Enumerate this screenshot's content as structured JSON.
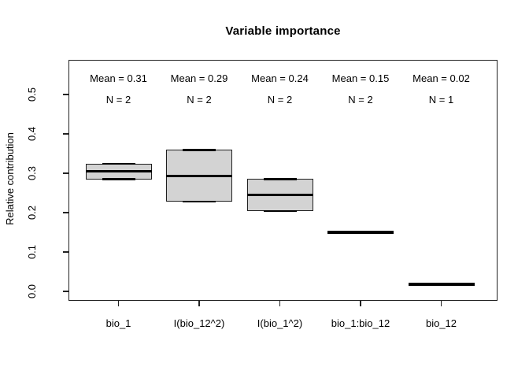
{
  "chart_data": {
    "type": "boxplot",
    "title": "Variable importance",
    "ylabel": "Relative contribution",
    "xlabel": "",
    "ylim": [
      -0.024,
      0.588
    ],
    "grid": false,
    "legend": "none",
    "colors": {
      "box_fill": "#d3d3d3",
      "box_border": "#1f1f1f",
      "line": "#000000",
      "axis": "#222222",
      "background": "#ffffff"
    },
    "yticks": [
      {
        "value": 0.0,
        "label": "0.0"
      },
      {
        "value": 0.1,
        "label": "0.1"
      },
      {
        "value": 0.2,
        "label": "0.2"
      },
      {
        "value": 0.3,
        "label": "0.3"
      },
      {
        "value": 0.4,
        "label": "0.4"
      },
      {
        "value": 0.5,
        "label": "0.5"
      }
    ],
    "groups": [
      {
        "category": "bio_1",
        "mean": 0.31,
        "n": 2,
        "mean_label": "Mean = 0.31",
        "n_label": "N = 2",
        "min": 0.285,
        "median": 0.305,
        "max": 0.325
      },
      {
        "category": "I(bio_12^2)",
        "mean": 0.29,
        "n": 2,
        "mean_label": "Mean = 0.29",
        "n_label": "N = 2",
        "min": 0.228,
        "median": 0.294,
        "max": 0.36
      },
      {
        "category": "I(bio_1^2)",
        "mean": 0.24,
        "n": 2,
        "mean_label": "Mean = 0.24",
        "n_label": "N = 2",
        "min": 0.204,
        "median": 0.245,
        "max": 0.286
      },
      {
        "category": "bio_1:bio_12",
        "mean": 0.15,
        "n": 2,
        "mean_label": "Mean = 0.15",
        "n_label": "N = 2",
        "min": 0.149,
        "median": 0.15,
        "max": 0.151
      },
      {
        "category": "bio_12",
        "mean": 0.02,
        "n": 1,
        "mean_label": "Mean = 0.02",
        "n_label": "N = 1",
        "min": 0.019,
        "median": 0.019,
        "max": 0.019
      }
    ]
  }
}
